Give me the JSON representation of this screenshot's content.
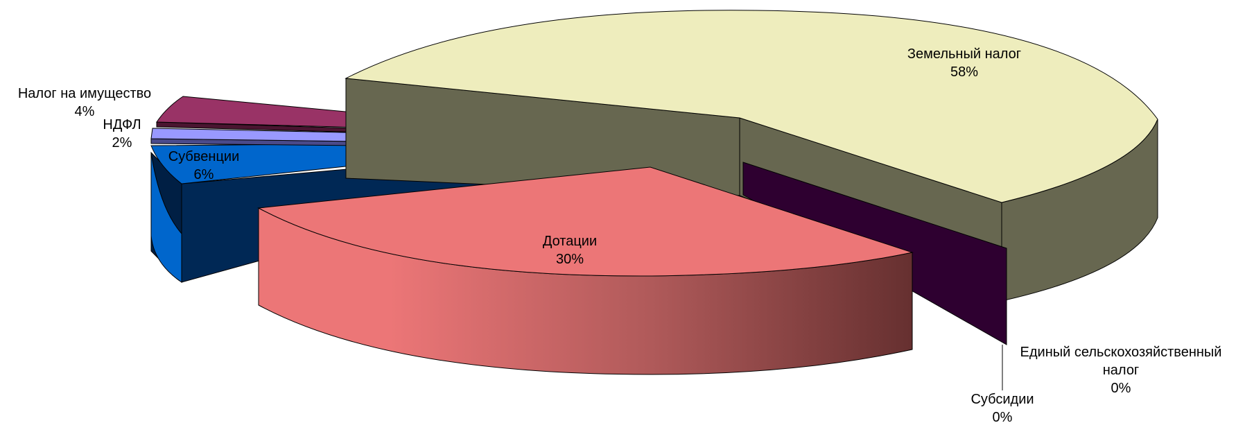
{
  "chart_data": {
    "type": "pie",
    "style": "3d-exploded",
    "title": "",
    "slices": [
      {
        "label": "Земельный налог",
        "value": 58,
        "value_label": "58%",
        "color": "#EEEDBD",
        "side_color": "#676750"
      },
      {
        "label": "Единый сельскохозяйственный налог",
        "label_lines": [
          "Единый сельскохозяйственный",
          "налог"
        ],
        "value": 0,
        "value_label": "0%",
        "color": "#2E0030",
        "side_color": "#2E0030"
      },
      {
        "label": "Субсидии",
        "value": 0,
        "value_label": "0%",
        "color": "#000000",
        "side_color": "#000000"
      },
      {
        "label": "Дотации",
        "value": 30,
        "value_label": "30%",
        "color": "#EC7677",
        "side_color": "#6A2F30"
      },
      {
        "label": "Субвенции",
        "value": 6,
        "value_label": "6%",
        "color": "#0066CC",
        "side_color": "#002855"
      },
      {
        "label": "НДФЛ",
        "value": 2,
        "value_label": "2%",
        "color": "#9999FF",
        "side_color": "#4A4A8A"
      },
      {
        "label": "Налог на имущество",
        "value": 4,
        "value_label": "4%",
        "color": "#993366",
        "side_color": "#4A1530"
      }
    ]
  }
}
